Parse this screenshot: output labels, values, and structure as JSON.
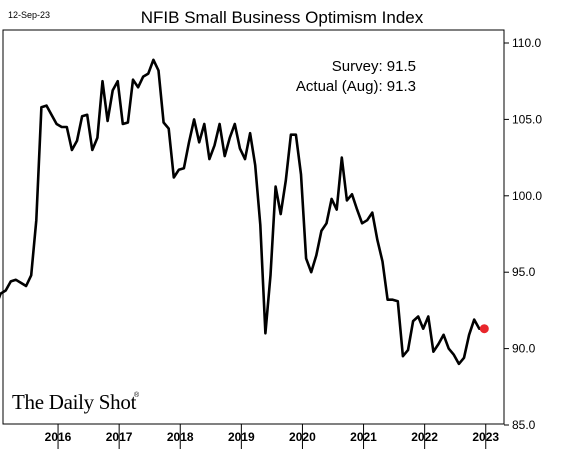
{
  "date_stamp": "12-Sep-23",
  "chart_data": {
    "type": "line",
    "title": "NFIB Small Business Optimism Index",
    "xlabel": "",
    "ylabel": "",
    "ylim": [
      85,
      110
    ],
    "y_ticks": [
      "110.0",
      "105.0",
      "100.0",
      "95.0",
      "90.0",
      "85.0"
    ],
    "x_ticks": [
      "2016",
      "2017",
      "2018",
      "2019",
      "2020",
      "2021",
      "2022",
      "2023"
    ],
    "grid": false,
    "annotations": {
      "survey": "Survey:  91.5",
      "actual": "Actual (Aug):  91.3"
    },
    "highlight_point": {
      "x": "2023-08",
      "y": 91.3,
      "color": "#e8262b"
    },
    "line_color": "#000000",
    "series": [
      {
        "x": [
          "2015-01",
          "2015-02",
          "2015-03",
          "2015-04",
          "2015-05",
          "2015-06",
          "2015-07",
          "2015-08",
          "2015-09",
          "2015-10",
          "2015-11",
          "2015-12",
          "2016-01",
          "2016-02",
          "2016-03",
          "2016-04",
          "2016-05",
          "2016-06",
          "2016-07",
          "2016-08",
          "2016-09",
          "2016-10",
          "2016-11",
          "2016-12",
          "2017-01",
          "2017-02",
          "2017-03",
          "2017-04",
          "2017-05",
          "2017-06",
          "2017-07",
          "2017-08",
          "2017-09",
          "2017-10",
          "2017-11",
          "2017-12",
          "2018-01",
          "2018-02",
          "2018-03",
          "2018-04",
          "2018-05",
          "2018-06",
          "2018-07",
          "2018-08",
          "2018-09",
          "2018-10",
          "2018-11",
          "2018-12",
          "2019-01",
          "2019-02",
          "2019-03",
          "2019-04",
          "2019-05",
          "2019-06",
          "2019-07",
          "2019-08",
          "2019-09",
          "2019-10",
          "2019-11",
          "2019-12",
          "2020-01",
          "2020-02",
          "2020-03",
          "2020-04",
          "2020-05",
          "2020-06",
          "2020-07",
          "2020-08",
          "2020-09",
          "2020-10",
          "2020-11",
          "2020-12",
          "2021-01",
          "2021-02",
          "2021-03",
          "2021-04",
          "2021-05",
          "2021-06",
          "2021-07",
          "2021-08",
          "2021-09",
          "2021-10",
          "2021-11",
          "2021-12",
          "2022-01",
          "2022-02",
          "2022-03",
          "2022-04",
          "2022-05",
          "2022-06",
          "2022-07",
          "2022-08",
          "2022-09",
          "2022-10",
          "2022-11",
          "2022-12",
          "2023-01",
          "2023-02",
          "2023-03",
          "2023-04",
          "2023-05",
          "2023-06",
          "2023-07",
          "2023-08"
        ],
        "values": [
          95.7,
          95.9,
          95.9,
          94.5,
          95.2,
          94.1,
          93.0,
          92.7,
          93.6,
          93.8,
          94.4,
          94.5,
          94.3,
          94.1,
          94.8,
          98.4,
          105.8,
          105.9,
          105.3,
          104.7,
          104.5,
          104.5,
          103.0,
          103.6,
          105.2,
          105.3,
          103.0,
          103.8,
          107.5,
          104.9,
          106.9,
          107.5,
          104.7,
          104.8,
          107.6,
          107.1,
          107.8,
          108.0,
          108.9,
          108.2,
          104.8,
          104.4,
          101.2,
          101.7,
          101.8,
          103.5,
          105.0,
          103.5,
          104.7,
          102.4,
          103.3,
          104.7,
          102.6,
          103.8,
          104.7,
          103.1,
          102.4,
          104.1,
          102.0,
          98.1,
          91.0,
          94.8,
          100.6,
          98.8,
          101.0,
          104.0,
          104.0,
          101.4,
          95.9,
          95.0,
          96.1,
          97.7,
          98.2,
          99.8,
          99.1,
          102.5,
          99.7,
          100.1,
          99.1,
          98.2,
          98.4,
          98.9,
          97.1,
          95.7,
          93.2,
          93.2,
          93.1,
          89.5,
          89.9,
          91.8,
          92.1,
          91.3,
          92.1,
          89.8,
          90.3,
          90.9,
          90.0,
          89.6,
          89.0,
          89.4,
          90.9,
          91.9,
          91.3,
          91.3
        ]
      }
    ]
  },
  "brand": {
    "name": "The Daily Shot",
    "mark": "®"
  }
}
